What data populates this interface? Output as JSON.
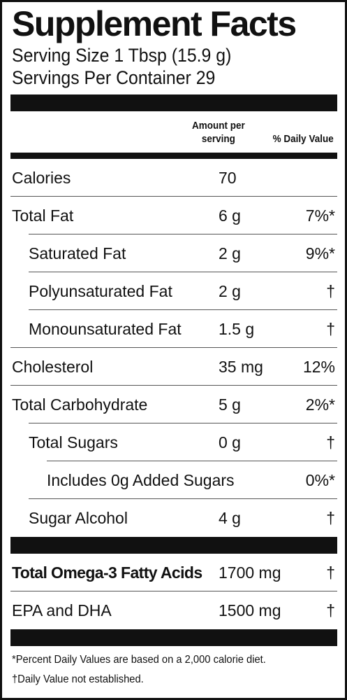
{
  "title": "Supplement Facts",
  "serving_size": "Serving Size 1 Tbsp (15.9 g)",
  "servings_per_container": "Servings Per Container 29",
  "header": {
    "amount_line1": "Amount per",
    "amount_line2": "serving",
    "daily_value": "% Daily Value"
  },
  "nutrients": [
    {
      "name": "Calories",
      "amount": "70",
      "dv": ""
    },
    {
      "name": "Total Fat",
      "amount": "6 g",
      "dv": "7%*"
    },
    {
      "name": "Saturated Fat",
      "amount": "2 g",
      "dv": "9%*"
    },
    {
      "name": "Polyunsaturated Fat",
      "amount": "2 g",
      "dv": "†"
    },
    {
      "name": "Monounsaturated Fat",
      "amount": "1.5 g",
      "dv": "†"
    },
    {
      "name": "Cholesterol",
      "amount": "35 mg",
      "dv": "12%"
    },
    {
      "name": "Total Carbohydrate",
      "amount": "5 g",
      "dv": "2%*"
    },
    {
      "name": "Total Sugars",
      "amount": "0 g",
      "dv": "†"
    },
    {
      "name": "Includes 0g Added Sugars",
      "amount": "",
      "dv": "0%*"
    },
    {
      "name": "Sugar Alcohol",
      "amount": "4 g",
      "dv": "†"
    }
  ],
  "omega": [
    {
      "name": "Total Omega-3 Fatty Acids",
      "amount": "1700 mg",
      "dv": "†"
    },
    {
      "name": "EPA and DHA",
      "amount": "1500 mg",
      "dv": "†"
    }
  ],
  "footnotes": {
    "percent_note": "*Percent Daily Values are based on a 2,000 calorie diet.",
    "dagger_note": "†Daily Value not established."
  }
}
